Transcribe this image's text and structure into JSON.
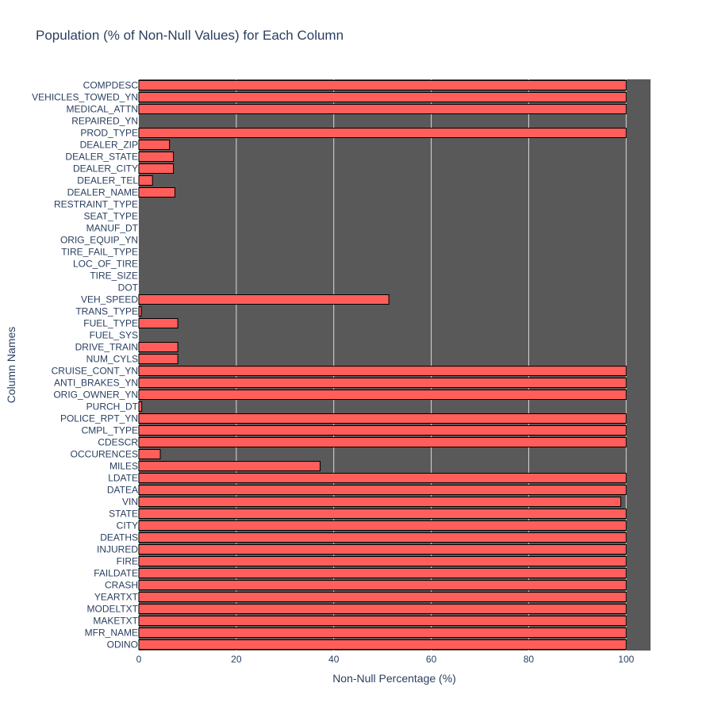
{
  "chart_data": {
    "type": "bar",
    "orientation": "horizontal",
    "title": "Population (% of Non-Null Values) for Each Column",
    "xlabel": "Non-Null Percentage (%)",
    "ylabel": "Column Names",
    "xlim": [
      0,
      105
    ],
    "x_ticks": [
      "0",
      "20",
      "40",
      "60",
      "80",
      "100"
    ],
    "grid": true,
    "legend": "none",
    "colors": {
      "bar_fill": "#ff5e5b",
      "bar_stroke": "#000000",
      "plot_bg": "#595959",
      "grid": "#d9d9d9",
      "text": "#2a3f5f"
    },
    "categories": [
      "ODINO",
      "MFR_NAME",
      "MAKETXT",
      "MODELTXT",
      "YEARTXT",
      "CRASH",
      "FAILDATE",
      "FIRE",
      "INJURED",
      "DEATHS",
      "CITY",
      "STATE",
      "VIN",
      "DATEA",
      "LDATE",
      "MILES",
      "OCCURENCES",
      "CDESCR",
      "CMPL_TYPE",
      "POLICE_RPT_YN",
      "PURCH_DT",
      "ORIG_OWNER_YN",
      "ANTI_BRAKES_YN",
      "CRUISE_CONT_YN",
      "NUM_CYLS",
      "DRIVE_TRAIN",
      "FUEL_SYS",
      "FUEL_TYPE",
      "TRANS_TYPE",
      "VEH_SPEED",
      "DOT",
      "TIRE_SIZE",
      "LOC_OF_TIRE",
      "TIRE_FAIL_TYPE",
      "ORIG_EQUIP_YN",
      "MANUF_DT",
      "SEAT_TYPE",
      "RESTRAINT_TYPE",
      "DEALER_NAME",
      "DEALER_TEL",
      "DEALER_CITY",
      "DEALER_STATE",
      "DEALER_ZIP",
      "PROD_TYPE",
      "REPAIRED_YN",
      "MEDICAL_ATTN",
      "VEHICLES_TOWED_YN",
      "COMPDESC"
    ],
    "values": [
      100,
      100,
      100,
      100,
      100,
      100,
      100,
      100,
      100,
      100,
      100,
      100,
      98.9,
      100,
      100,
      37.2,
      4.4,
      100,
      100,
      100,
      0.6,
      100,
      100,
      100,
      8,
      8,
      0,
      8,
      0.5,
      51.3,
      0,
      0,
      0,
      0,
      0,
      0,
      0,
      0,
      7.4,
      2.8,
      7.1,
      7.1,
      6.3,
      100,
      0,
      100,
      100,
      100
    ]
  }
}
